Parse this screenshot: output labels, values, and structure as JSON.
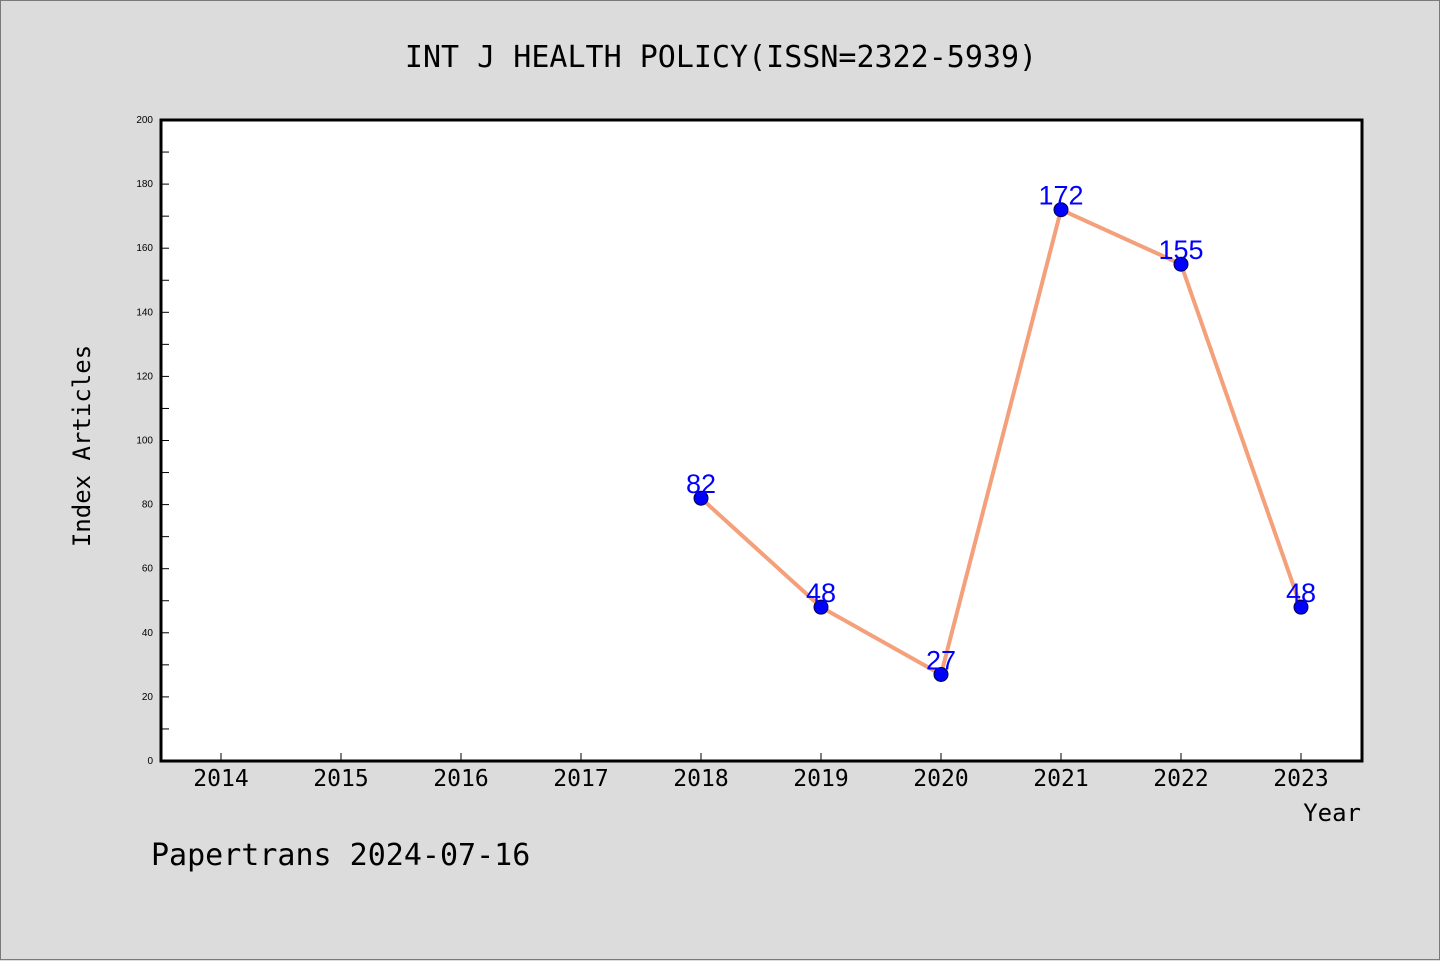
{
  "chart_data": {
    "type": "line",
    "title": "INT J HEALTH POLICY(ISSN=2322-5939)",
    "xlabel": "Year",
    "ylabel": "Index Articles",
    "footer": "Papertrans 2024-07-16",
    "categories": [
      "2014",
      "2015",
      "2016",
      "2017",
      "2018",
      "2019",
      "2020",
      "2021",
      "2022",
      "2023"
    ],
    "yticks": [
      0,
      20,
      40,
      60,
      80,
      100,
      120,
      140,
      160,
      180,
      200
    ],
    "ylim": [
      0,
      200
    ],
    "grid": false,
    "points": [
      {
        "x": "2018",
        "y": 82
      },
      {
        "x": "2019",
        "y": 48
      },
      {
        "x": "2020",
        "y": 27
      },
      {
        "x": "2021",
        "y": 172
      },
      {
        "x": "2022",
        "y": 155
      },
      {
        "x": "2023",
        "y": 48
      }
    ],
    "colors": {
      "background": "#dcdcdc",
      "plot_background": "#ffffff",
      "line": "#f4a07a",
      "marker": "#0000ff",
      "data_label": "#0000ff",
      "text": "#000000"
    }
  }
}
